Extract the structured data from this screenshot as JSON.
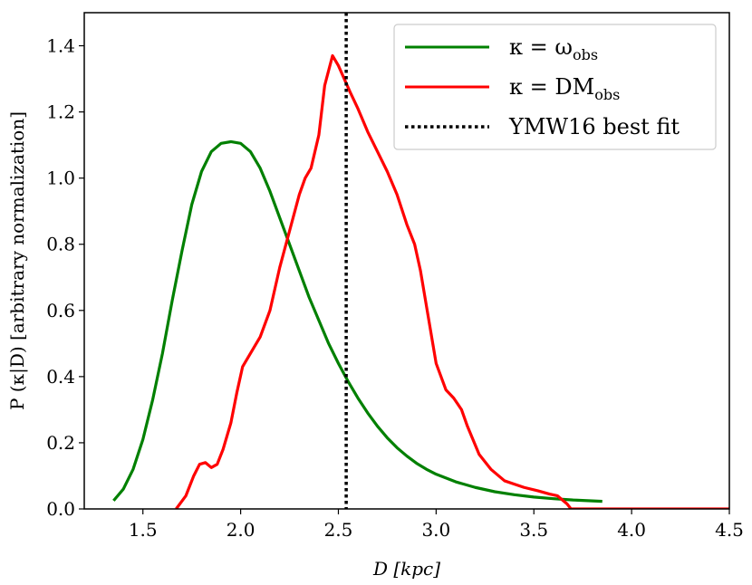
{
  "chart_data": {
    "type": "line",
    "title": "",
    "xlabel": "D [kpc]",
    "ylabel": "P (κ|D) [arbitrary normalization]",
    "xlim": [
      1.2,
      4.5
    ],
    "ylim": [
      0.0,
      1.5
    ],
    "xticks": [
      1.5,
      2.0,
      2.5,
      3.0,
      3.5,
      4.0,
      4.5
    ],
    "xtick_labels": [
      "1.5",
      "2.0",
      "2.5",
      "3.0",
      "3.5",
      "4.0",
      "4.5"
    ],
    "yticks": [
      0.0,
      0.2,
      0.4,
      0.6,
      0.8,
      1.0,
      1.2,
      1.4
    ],
    "ytick_labels": [
      "0.0",
      "0.2",
      "0.4",
      "0.6",
      "0.8",
      "1.0",
      "1.2",
      "1.4"
    ],
    "grid": false,
    "legend_position": "top-right",
    "series": [
      {
        "name": "κ = ω_obs",
        "legend_main": "κ = ω",
        "legend_sub": "obs",
        "color": "#008000",
        "style": "solid",
        "x": [
          1.35,
          1.4,
          1.45,
          1.5,
          1.55,
          1.6,
          1.65,
          1.7,
          1.75,
          1.8,
          1.85,
          1.9,
          1.95,
          2.0,
          2.05,
          2.1,
          2.15,
          2.2,
          2.25,
          2.3,
          2.35,
          2.4,
          2.45,
          2.5,
          2.55,
          2.6,
          2.65,
          2.7,
          2.75,
          2.8,
          2.85,
          2.9,
          2.95,
          3.0,
          3.1,
          3.2,
          3.3,
          3.4,
          3.5,
          3.6,
          3.7,
          3.85
        ],
        "y": [
          0.025,
          0.06,
          0.12,
          0.21,
          0.33,
          0.47,
          0.63,
          0.78,
          0.92,
          1.02,
          1.08,
          1.105,
          1.11,
          1.105,
          1.08,
          1.03,
          0.96,
          0.88,
          0.8,
          0.72,
          0.64,
          0.57,
          0.5,
          0.44,
          0.385,
          0.335,
          0.29,
          0.25,
          0.215,
          0.185,
          0.16,
          0.138,
          0.12,
          0.105,
          0.082,
          0.065,
          0.052,
          0.043,
          0.036,
          0.031,
          0.027,
          0.023
        ]
      },
      {
        "name": "κ = DM_obs",
        "legend_main": "κ = DM",
        "legend_sub": "obs",
        "color": "#ff0000",
        "style": "solid",
        "x": [
          1.67,
          1.72,
          1.76,
          1.79,
          1.82,
          1.85,
          1.88,
          1.91,
          1.95,
          1.98,
          2.01,
          2.05,
          2.1,
          2.15,
          2.2,
          2.25,
          2.3,
          2.33,
          2.36,
          2.4,
          2.43,
          2.47,
          2.5,
          2.53,
          2.56,
          2.6,
          2.65,
          2.7,
          2.75,
          2.8,
          2.85,
          2.89,
          2.92,
          2.96,
          3.0,
          3.05,
          3.09,
          3.13,
          3.16,
          3.22,
          3.28,
          3.35,
          3.4,
          3.45,
          3.52,
          3.58,
          3.62,
          3.67,
          3.69,
          3.8,
          4.0,
          4.5
        ],
        "y": [
          0.0,
          0.04,
          0.1,
          0.135,
          0.14,
          0.125,
          0.135,
          0.18,
          0.26,
          0.35,
          0.43,
          0.47,
          0.52,
          0.6,
          0.73,
          0.84,
          0.95,
          1.0,
          1.03,
          1.13,
          1.28,
          1.37,
          1.34,
          1.3,
          1.26,
          1.21,
          1.14,
          1.08,
          1.02,
          0.95,
          0.86,
          0.8,
          0.72,
          0.58,
          0.44,
          0.36,
          0.335,
          0.3,
          0.25,
          0.165,
          0.12,
          0.085,
          0.075,
          0.065,
          0.055,
          0.045,
          0.04,
          0.015,
          0.0,
          0.0,
          0.0,
          0.0
        ]
      },
      {
        "name": "YMW16 best fit",
        "legend_main": "YMW16 best fit",
        "legend_sub": "",
        "color": "#000000",
        "style": "dotted",
        "vline_x": 2.54
      }
    ]
  }
}
